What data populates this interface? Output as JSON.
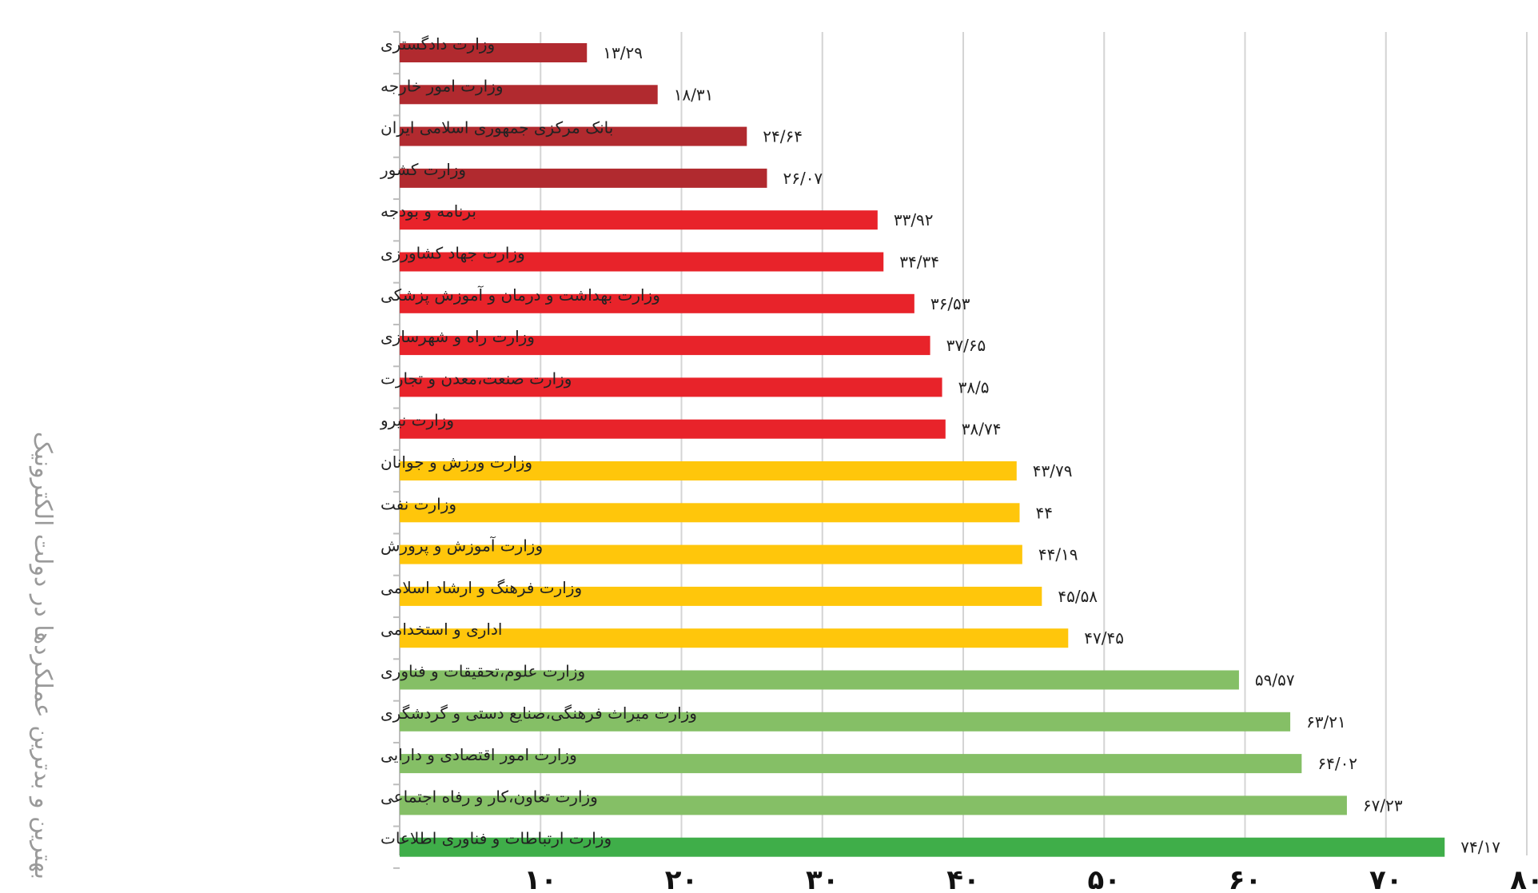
{
  "chart_data": {
    "type": "bar",
    "orientation": "horizontal",
    "title": "بهترین و بدترین عملکردها در دولت الکترونیک",
    "xlim": [
      0,
      80
    ],
    "x_ticks": [
      10,
      20,
      30,
      40,
      50,
      60,
      70,
      80
    ],
    "x_tick_labels": [
      "۱۰",
      "۲۰",
      "۳۰",
      "۴۰",
      "۵۰",
      "۶۰",
      "۷۰",
      "۸۰"
    ],
    "grid": true,
    "bars": [
      {
        "category": "وزارت دادگستری",
        "value": 13.29,
        "label": "۱۳/۲۹",
        "color": "#b12a2f"
      },
      {
        "category": "وزارت امور خارجه",
        "value": 18.31,
        "label": "۱۸/۳۱",
        "color": "#b12a2f"
      },
      {
        "category": "بانک مرکزی جمهوری اسلامی ایران",
        "value": 24.64,
        "label": "۲۴/۶۴",
        "color": "#b12a2f"
      },
      {
        "category": "وزارت کشور",
        "value": 26.07,
        "label": "۲۶/۰۷",
        "color": "#b12a2f"
      },
      {
        "category": "برنامه و بودجه",
        "value": 33.92,
        "label": "۳۳/۹۲",
        "color": "#e8232a"
      },
      {
        "category": "وزارت جهاد کشاورزی",
        "value": 34.34,
        "label": "۳۴/۳۴",
        "color": "#e8232a"
      },
      {
        "category": "وزارت بهداشت و درمان و آموزش پزشکی",
        "value": 36.53,
        "label": "۳۶/۵۳",
        "color": "#e8232a"
      },
      {
        "category": "وزارت راه و شهرسازی",
        "value": 37.65,
        "label": "۳۷/۶۵",
        "color": "#e8232a"
      },
      {
        "category": "وزارت صنعت،معدن و تجارت",
        "value": 38.5,
        "label": "۳۸/۵",
        "color": "#e8232a"
      },
      {
        "category": "وزارت نیرو",
        "value": 38.74,
        "label": "۳۸/۷۴",
        "color": "#e8232a"
      },
      {
        "category": "وزارت ورزش و جوانان",
        "value": 43.79,
        "label": "۴۳/۷۹",
        "color": "#ffc60b"
      },
      {
        "category": "وزارت نفت",
        "value": 44,
        "label": "۴۴",
        "color": "#ffc60b"
      },
      {
        "category": "وزارت آموزش و پرورش",
        "value": 44.19,
        "label": "۴۴/۱۹",
        "color": "#ffc60b"
      },
      {
        "category": "وزارت فرهنگ و ارشاد اسلامی",
        "value": 45.58,
        "label": "۴۵/۵۸",
        "color": "#ffc60b"
      },
      {
        "category": "اداری و استخدامی",
        "value": 47.45,
        "label": "۴۷/۴۵",
        "color": "#ffc60b"
      },
      {
        "category": "وزارت علوم،تحقیقات و فناوری",
        "value": 59.57,
        "label": "۵۹/۵۷",
        "color": "#85bf66"
      },
      {
        "category": "وزارت میراث فرهنگی،صنایع دستی و گردشگری",
        "value": 63.21,
        "label": "۶۳/۲۱",
        "color": "#85bf66"
      },
      {
        "category": "وزارت امور اقتصادی و دارایی",
        "value": 64.02,
        "label": "۶۴/۰۲",
        "color": "#85bf66"
      },
      {
        "category": "وزارت تعاون،کار و رفاه اجتماعی",
        "value": 67.23,
        "label": "۶۷/۲۳",
        "color": "#85bf66"
      },
      {
        "category": "وزارت ارتباطات و فناوری اطلاعات",
        "value": 74.17,
        "label": "۷۴/۱۷",
        "color": "#3fae49"
      }
    ]
  }
}
